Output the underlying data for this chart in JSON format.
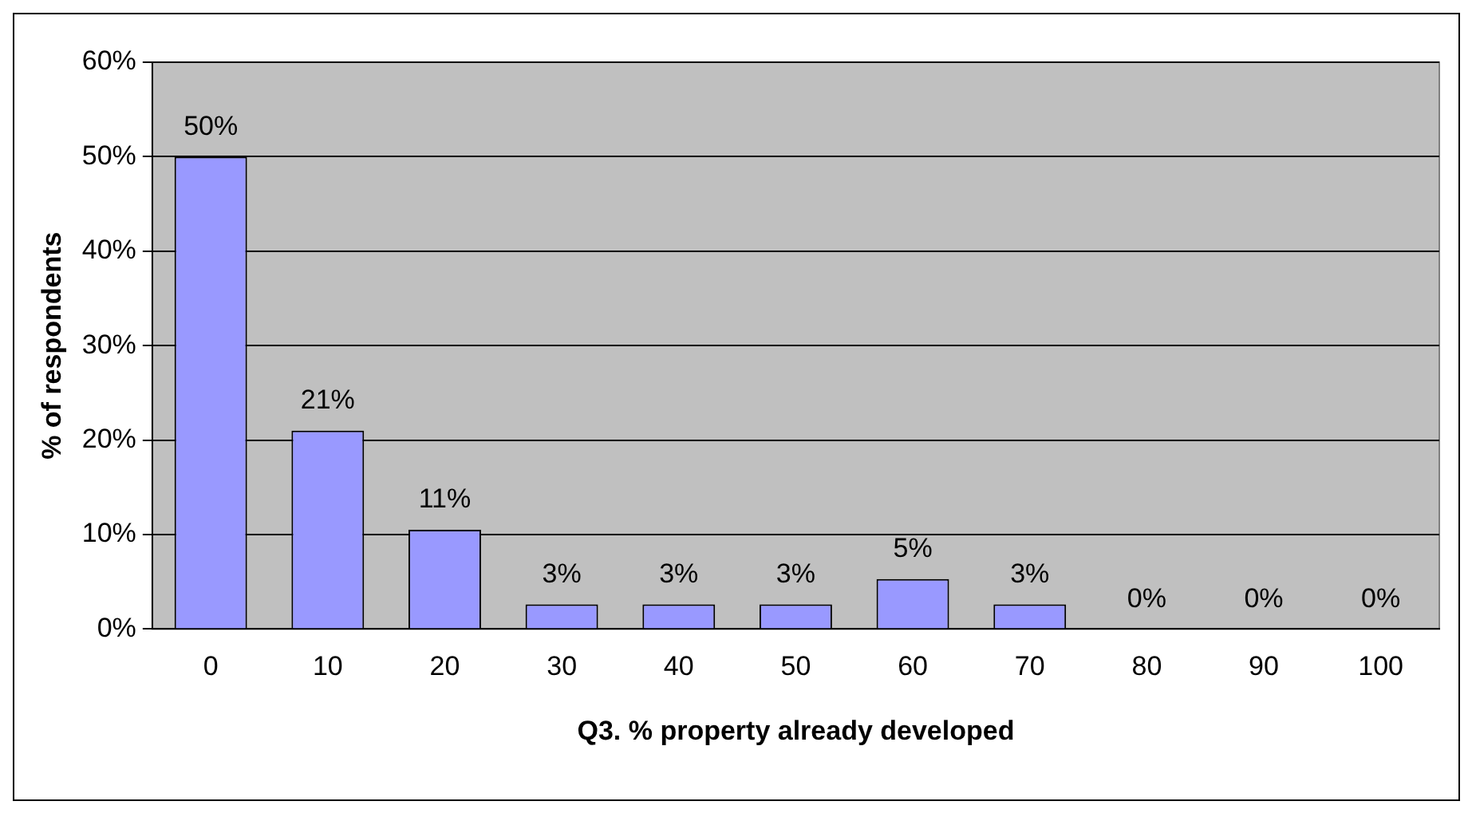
{
  "chart_data": {
    "type": "bar",
    "xlabel": "Q3. % property already developed",
    "ylabel": "% of respondents",
    "categories": [
      "0",
      "10",
      "20",
      "30",
      "40",
      "50",
      "60",
      "70",
      "80",
      "90",
      "100"
    ],
    "values": [
      50,
      21,
      10.5,
      2.6,
      2.6,
      2.6,
      5.3,
      2.6,
      0,
      0,
      0
    ],
    "value_labels": [
      "50%",
      "21%",
      "11%",
      "3%",
      "3%",
      "3%",
      "5%",
      "3%",
      "0%",
      "0%",
      "0%"
    ],
    "color": "#9999ff",
    "ylim": [
      0,
      60
    ],
    "yticks": [
      {
        "value": 0,
        "label": "0%"
      },
      {
        "value": 10,
        "label": "10%"
      },
      {
        "value": 20,
        "label": "20%"
      },
      {
        "value": 30,
        "label": "30%"
      },
      {
        "value": 40,
        "label": "40%"
      },
      {
        "value": 50,
        "label": "50%"
      },
      {
        "value": 60,
        "label": "60%"
      }
    ],
    "grid": "y",
    "legend": false
  }
}
